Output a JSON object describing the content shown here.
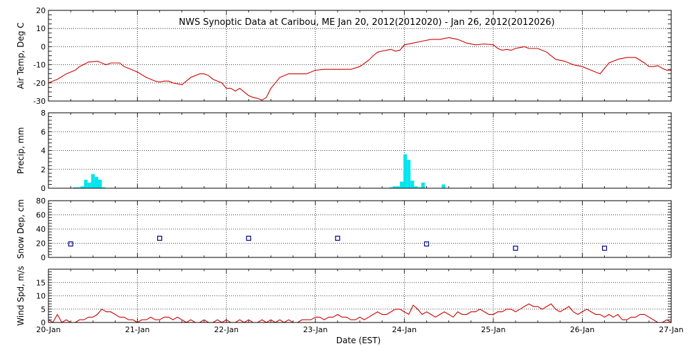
{
  "chart_data": {
    "title": "NWS Synoptic Data at Caribou, ME   Jan 20, 2012(2012020) - Jan 26, 2012(2012026)",
    "xlabel": "Date (EST)",
    "x_ticks": [
      "20-Jan",
      "21-Jan",
      "22-Jan",
      "23-Jan",
      "24-Jan",
      "25-Jan",
      "26-Jan",
      "27-Jan"
    ],
    "xlim_days": [
      0,
      7
    ],
    "grid": true,
    "panels": [
      {
        "type": "line",
        "ylabel": "Air Temp, Deg C",
        "ylim": [
          -30,
          20
        ],
        "yticks": [
          "20",
          "10",
          "0",
          "-10",
          "-20",
          "-30"
        ],
        "series": [
          {
            "color": "#cc0000",
            "x": [
              0,
              0.1,
              0.2,
              0.3,
              0.35,
              0.45,
              0.55,
              0.6,
              0.65,
              0.7,
              0.75,
              0.8,
              0.85,
              0.9,
              1.0,
              1.1,
              1.2,
              1.25,
              1.3,
              1.35,
              1.4,
              1.5,
              1.6,
              1.7,
              1.75,
              1.8,
              1.85,
              1.9,
              1.95,
              2.0,
              2.05,
              2.1,
              2.15,
              2.2,
              2.25,
              2.3,
              2.35,
              2.4,
              2.45,
              2.5,
              2.55,
              2.6,
              2.7,
              2.8,
              2.9,
              3.0,
              3.1,
              3.2,
              3.3,
              3.4,
              3.5,
              3.6,
              3.65,
              3.7,
              3.75,
              3.8,
              3.85,
              3.9,
              3.95,
              4.0,
              4.1,
              4.2,
              4.3,
              4.4,
              4.5,
              4.6,
              4.7,
              4.8,
              4.9,
              5.0,
              5.05,
              5.1,
              5.15,
              5.2,
              5.25,
              5.3,
              5.35,
              5.4,
              5.5,
              5.6,
              5.7,
              5.8,
              5.9,
              6.0,
              6.1,
              6.2,
              6.3,
              6.35,
              6.4,
              6.5,
              6.6,
              6.7,
              6.75,
              6.8,
              6.85,
              6.9,
              6.95,
              7.0
            ],
            "values": [
              -20,
              -18,
              -15,
              -13,
              -11,
              -8.5,
              -8,
              -9,
              -10,
              -9,
              -9,
              -9,
              -11,
              -12,
              -14,
              -17,
              -19,
              -19.5,
              -19,
              -19,
              -20,
              -21,
              -17,
              -15,
              -15,
              -16,
              -18,
              -19,
              -20,
              -23,
              -23,
              -24.5,
              -23,
              -25,
              -27,
              -28,
              -28.5,
              -29.5,
              -28,
              -23,
              -20,
              -17,
              -15,
              -15,
              -15,
              -13,
              -12.5,
              -12.5,
              -12.5,
              -12.5,
              -11,
              -7.5,
              -5,
              -3,
              -2.5,
              -2,
              -1.5,
              -2.5,
              -2,
              1,
              2,
              3,
              4,
              4,
              5,
              4,
              2,
              1,
              1.5,
              1,
              -1,
              -2,
              -1.5,
              -2,
              -1,
              -0.5,
              0,
              -1,
              -1,
              -3,
              -7,
              -8,
              -10,
              -11,
              -13,
              -15,
              -9,
              -8,
              -7,
              -6,
              -6,
              -9,
              -11,
              -11,
              -10.5,
              -12,
              -13,
              -13
            ]
          }
        ]
      },
      {
        "type": "bar",
        "ylabel": "Precip, mm",
        "ylim": [
          0,
          8
        ],
        "yticks": [
          "8",
          "6",
          "4",
          "2",
          "0"
        ],
        "color": "#00e5ee",
        "bar_width_days": 0.04,
        "x": [
          0.3,
          0.34,
          0.38,
          0.42,
          0.46,
          0.5,
          0.54,
          0.58,
          0.62,
          3.85,
          3.89,
          3.93,
          3.97,
          4.01,
          4.05,
          4.09,
          4.13,
          4.17,
          4.21,
          4.44
        ],
        "values": [
          0.1,
          0.1,
          0.2,
          0.9,
          0.6,
          1.5,
          1.2,
          0.9,
          0.1,
          0.1,
          0.2,
          0.2,
          0.7,
          3.6,
          3.0,
          0.8,
          0.2,
          0.1,
          0.6,
          0.4
        ]
      },
      {
        "type": "scatter",
        "ylabel": "Snow Dep, cm",
        "ylim": [
          0,
          80
        ],
        "yticks": [
          "80",
          "60",
          "40",
          "20",
          "0"
        ],
        "color": "#000080",
        "marker": "hollow-square",
        "x": [
          0.25,
          1.25,
          2.25,
          3.25,
          4.25,
          5.25,
          6.25
        ],
        "values": [
          19,
          27,
          27,
          27,
          19,
          13,
          13
        ]
      },
      {
        "type": "line",
        "ylabel": "Wind Spd, m/s",
        "ylim": [
          0,
          20
        ],
        "yticks": [
          "15",
          "10",
          "5",
          "0"
        ],
        "series": [
          {
            "color": "#cc0000",
            "x": [
              0,
              0.05,
              0.1,
              0.15,
              0.2,
              0.25,
              0.3,
              0.35,
              0.4,
              0.45,
              0.5,
              0.55,
              0.6,
              0.65,
              0.7,
              0.75,
              0.8,
              0.85,
              0.9,
              0.95,
              1.0,
              1.05,
              1.1,
              1.15,
              1.2,
              1.25,
              1.3,
              1.35,
              1.4,
              1.45,
              1.5,
              1.55,
              1.6,
              1.65,
              1.7,
              1.75,
              1.8,
              1.85,
              1.9,
              1.95,
              2.0,
              2.05,
              2.1,
              2.15,
              2.2,
              2.25,
              2.3,
              2.35,
              2.4,
              2.45,
              2.5,
              2.55,
              2.6,
              2.65,
              2.7,
              2.75,
              2.8,
              2.85,
              2.9,
              2.95,
              3.0,
              3.05,
              3.1,
              3.15,
              3.2,
              3.25,
              3.3,
              3.35,
              3.4,
              3.45,
              3.5,
              3.55,
              3.6,
              3.65,
              3.7,
              3.75,
              3.8,
              3.85,
              3.9,
              3.95,
              4.0,
              4.05,
              4.1,
              4.15,
              4.2,
              4.25,
              4.3,
              4.35,
              4.4,
              4.45,
              4.5,
              4.55,
              4.6,
              4.65,
              4.7,
              4.75,
              4.8,
              4.85,
              4.9,
              4.95,
              5.0,
              5.05,
              5.1,
              5.15,
              5.2,
              5.25,
              5.3,
              5.35,
              5.4,
              5.45,
              5.5,
              5.55,
              5.6,
              5.65,
              5.7,
              5.75,
              5.8,
              5.85,
              5.9,
              5.95,
              6.0,
              6.05,
              6.1,
              6.15,
              6.2,
              6.25,
              6.3,
              6.35,
              6.4,
              6.45,
              6.5,
              6.55,
              6.6,
              6.65,
              6.7,
              6.75,
              6.8,
              6.85,
              6.9,
              6.95,
              7.0
            ],
            "values": [
              1,
              0,
              3,
              0,
              1,
              0,
              0,
              1,
              1,
              2,
              2,
              3,
              5,
              4,
              4,
              3,
              2,
              2,
              1,
              1,
              0,
              1,
              1,
              2,
              1,
              1,
              2,
              2,
              1,
              2,
              1,
              0,
              1,
              0,
              0,
              1,
              0,
              0,
              1,
              0,
              1,
              0,
              0,
              1,
              0,
              1,
              0,
              0,
              1,
              0,
              1,
              0,
              1,
              0,
              1,
              0,
              0,
              1,
              1,
              1,
              2,
              2,
              1,
              2,
              2,
              3,
              2,
              2,
              1,
              1,
              2,
              1,
              2,
              3,
              4,
              3,
              3,
              4,
              5,
              5,
              4,
              3,
              6.5,
              5,
              3,
              4,
              3,
              2,
              3,
              4,
              3,
              2,
              4,
              3,
              3,
              4,
              4,
              5,
              4,
              3,
              3,
              4,
              4,
              5,
              5,
              4,
              5,
              6,
              7,
              6,
              6,
              5,
              6,
              7,
              5,
              4,
              5,
              6,
              4,
              3,
              4,
              5,
              4,
              3,
              3,
              2,
              3,
              2,
              3,
              1,
              1,
              2,
              2,
              3,
              3,
              2,
              1,
              0,
              0,
              1,
              0
            ]
          }
        ]
      }
    ]
  }
}
